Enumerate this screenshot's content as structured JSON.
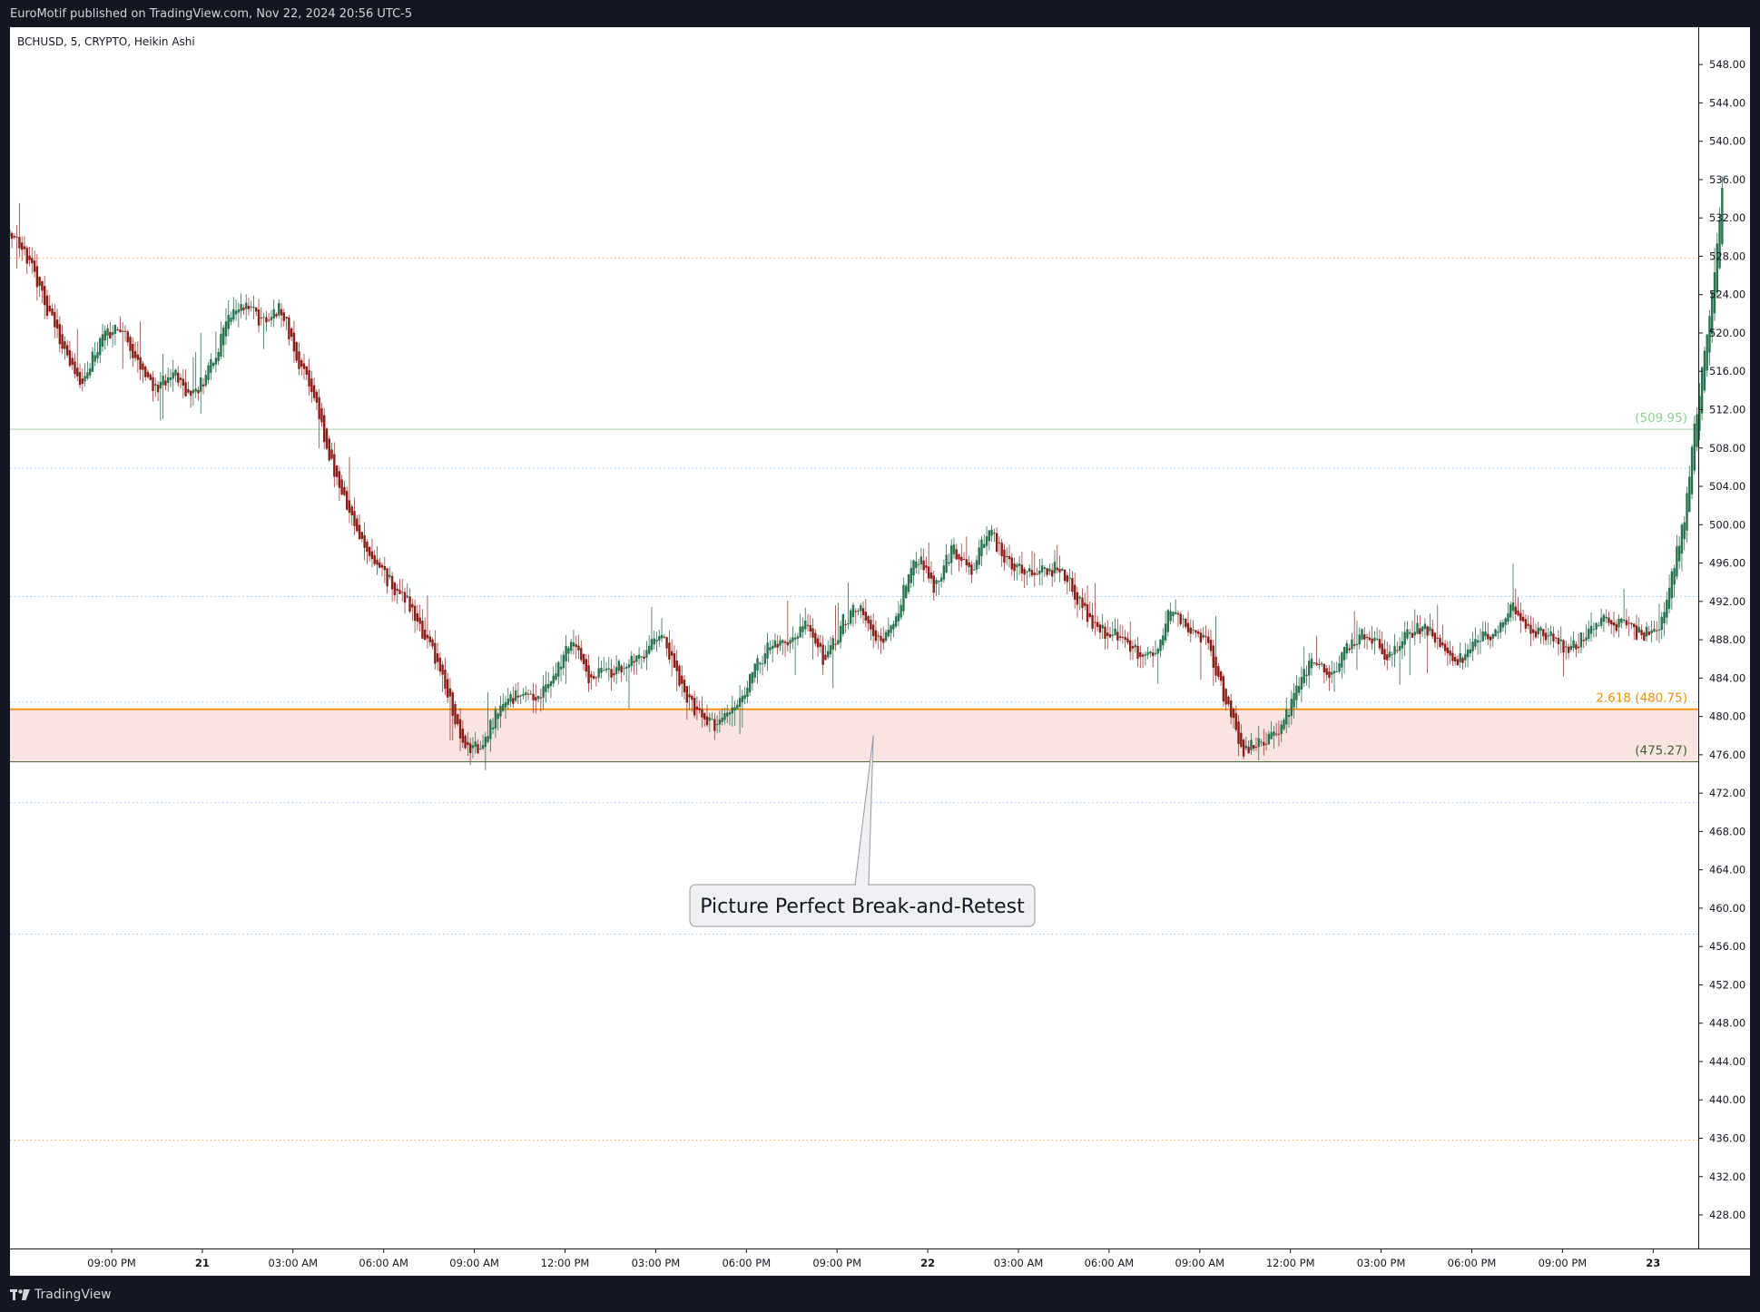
{
  "header": {
    "published": "EuroMotif published on TradingView.com, Nov 22, 2024 20:56 UTC-5"
  },
  "footer": {
    "brand": "TradingView"
  },
  "colors": {
    "up": "#26734d",
    "down": "#8b1d17",
    "wick_up": "#2f6e4e",
    "wick_down": "#a23a35",
    "orange": "#f29008",
    "green_line": "#a5d6a7",
    "dark_green": "#3f5f2a",
    "zone": "#f9e3e3",
    "dotted_blue": "#90caf9",
    "dotted_orange": "#f5b041"
  },
  "chart_data": {
    "type": "candlestick",
    "symbol_label": "BCHUSD, 5, CRYPTO, Heikin Ashi",
    "style": "Heikin Ashi",
    "y_range": [
      424.5,
      550.0
    ],
    "y_ticks": [
      "548.00",
      "544.00",
      "540.00",
      "536.00",
      "532.00",
      "528.00",
      "524.00",
      "520.00",
      "516.00",
      "512.00",
      "508.00",
      "504.00",
      "500.00",
      "496.00",
      "492.00",
      "488.00",
      "484.00",
      "480.00",
      "476.00",
      "472.00",
      "468.00",
      "464.00",
      "460.00",
      "456.00",
      "452.00",
      "448.00",
      "444.00",
      "440.00",
      "436.00",
      "432.00",
      "428.00"
    ],
    "x_ticks": [
      {
        "t": -25,
        "label": "06:00 PM",
        "bold": false
      },
      {
        "t": 0,
        "label": "09:00 PM",
        "bold": false
      },
      {
        "t": 3,
        "label": "21",
        "bold": true
      },
      {
        "t": 6,
        "label": "03:00 AM",
        "bold": false
      },
      {
        "t": 9,
        "label": "06:00 AM",
        "bold": false
      },
      {
        "t": 12,
        "label": "09:00 AM",
        "bold": false
      },
      {
        "t": 15,
        "label": "12:00 PM",
        "bold": false
      },
      {
        "t": 18,
        "label": "03:00 PM",
        "bold": false
      },
      {
        "t": 21,
        "label": "06:00 PM",
        "bold": false
      },
      {
        "t": 24,
        "label": "09:00 PM",
        "bold": false
      },
      {
        "t": 27,
        "label": "22",
        "bold": true
      },
      {
        "t": 30,
        "label": "03:00 AM",
        "bold": false
      },
      {
        "t": 33,
        "label": "06:00 AM",
        "bold": false
      },
      {
        "t": 36,
        "label": "09:00 AM",
        "bold": false
      },
      {
        "t": 39,
        "label": "12:00 PM",
        "bold": false
      },
      {
        "t": 42,
        "label": "03:00 PM",
        "bold": false
      },
      {
        "t": 45,
        "label": "06:00 PM",
        "bold": false
      },
      {
        "t": 48,
        "label": "09:00 PM",
        "bold": false
      },
      {
        "t": 51,
        "label": "23",
        "bold": true
      }
    ],
    "horizontal_levels": [
      {
        "price": 527.8,
        "style": "dotted-orange"
      },
      {
        "price": 509.95,
        "style": "solid-green",
        "label": "(509.95)"
      },
      {
        "price": 505.9,
        "style": "dotted-blue"
      },
      {
        "price": 492.5,
        "style": "dotted-blue"
      },
      {
        "price": 481.5,
        "style": "dotted-blue"
      },
      {
        "price": 480.75,
        "style": "solid-orange",
        "label": "2.618 (480.75)"
      },
      {
        "price": 475.27,
        "style": "solid-darkgreen",
        "label": "(475.27)"
      },
      {
        "price": 471.0,
        "style": "dotted-blue"
      },
      {
        "price": 457.3,
        "style": "dotted-blue"
      },
      {
        "price": 435.8,
        "style": "dotted-orange"
      }
    ],
    "zone": {
      "top": 480.75,
      "bottom": 475.27
    },
    "annotation": {
      "text": "Picture Perfect Break-and-Retest",
      "pointer_price": 478.0,
      "pointer_t": 25.2
    },
    "path": [
      [
        -25.3,
        447.5
      ],
      [
        -24.5,
        445.0
      ],
      [
        -23.5,
        443.0
      ],
      [
        -22.8,
        441.0
      ],
      [
        -21.5,
        446.0
      ],
      [
        -20.5,
        449.5
      ],
      [
        -19.8,
        447.0
      ],
      [
        -19.0,
        448.5
      ],
      [
        -18.0,
        446.0
      ],
      [
        -17.0,
        441.5
      ],
      [
        -16.0,
        436.0
      ],
      [
        -15.4,
        431.0
      ],
      [
        -14.8,
        432.0
      ],
      [
        -14.0,
        437.0
      ],
      [
        -13.4,
        447.0
      ],
      [
        -12.8,
        449.0
      ],
      [
        -12.2,
        456.0
      ],
      [
        -11.4,
        468.0
      ],
      [
        -10.8,
        474.0
      ],
      [
        -10.2,
        480.0
      ],
      [
        -9.6,
        491.0
      ],
      [
        -9.0,
        498.0
      ],
      [
        -8.4,
        506.0
      ],
      [
        -7.8,
        512.0
      ],
      [
        -7.2,
        518.0
      ],
      [
        -6.6,
        514.0
      ],
      [
        -6.0,
        522.0
      ],
      [
        -5.6,
        528.0
      ],
      [
        -5.2,
        531.0
      ],
      [
        -4.8,
        526.0
      ],
      [
        -4.4,
        522.0
      ],
      [
        -3.9,
        527.0
      ],
      [
        -3.4,
        531.0
      ],
      [
        -2.8,
        528.0
      ],
      [
        -2.2,
        523.0
      ],
      [
        -1.6,
        518.0
      ],
      [
        -1.0,
        515.0
      ],
      [
        -0.4,
        519.0
      ],
      [
        0.2,
        521.0
      ],
      [
        0.8,
        517.0
      ],
      [
        1.4,
        514.0
      ],
      [
        2.0,
        516.0
      ],
      [
        2.6,
        513.0
      ],
      [
        3.2,
        516.0
      ],
      [
        3.8,
        521.0
      ],
      [
        4.4,
        523.0
      ],
      [
        5.0,
        521.0
      ],
      [
        5.6,
        522.5
      ],
      [
        6.2,
        517.0
      ],
      [
        6.8,
        512.0
      ],
      [
        7.4,
        505.0
      ],
      [
        8.0,
        500.0
      ],
      [
        8.6,
        496.0
      ],
      [
        9.2,
        494.0
      ],
      [
        9.8,
        492.0
      ],
      [
        10.4,
        488.0
      ],
      [
        11.0,
        484.0
      ],
      [
        11.6,
        477.0
      ],
      [
        12.2,
        476.5
      ],
      [
        12.8,
        481.0
      ],
      [
        13.4,
        482.0
      ],
      [
        14.0,
        481.5
      ],
      [
        14.6,
        484.0
      ],
      [
        15.2,
        488.0
      ],
      [
        15.8,
        484.0
      ],
      [
        16.4,
        484.5
      ],
      [
        17.0,
        485.5
      ],
      [
        17.6,
        486.0
      ],
      [
        18.2,
        489.0
      ],
      [
        18.8,
        483.0
      ],
      [
        19.4,
        480.0
      ],
      [
        20.0,
        479.0
      ],
      [
        20.6,
        481.0
      ],
      [
        21.2,
        484.5
      ],
      [
        21.8,
        487.5
      ],
      [
        22.4,
        488.0
      ],
      [
        23.0,
        490.0
      ],
      [
        23.6,
        485.5
      ],
      [
        24.2,
        490.0
      ],
      [
        24.8,
        491.5
      ],
      [
        25.4,
        487.5
      ],
      [
        26.0,
        491.0
      ],
      [
        26.6,
        497.0
      ],
      [
        27.2,
        493.5
      ],
      [
        27.8,
        497.5
      ],
      [
        28.4,
        495.0
      ],
      [
        29.0,
        499.5
      ],
      [
        29.6,
        496.0
      ],
      [
        30.2,
        495.5
      ],
      [
        30.8,
        495.0
      ],
      [
        31.4,
        495.5
      ],
      [
        32.0,
        492.0
      ],
      [
        32.6,
        489.0
      ],
      [
        33.2,
        488.5
      ],
      [
        33.8,
        487.0
      ],
      [
        34.4,
        486.0
      ],
      [
        35.0,
        491.0
      ],
      [
        35.6,
        489.0
      ],
      [
        36.2,
        488.0
      ],
      [
        36.8,
        482.0
      ],
      [
        37.4,
        476.5
      ],
      [
        38.0,
        477.0
      ],
      [
        38.6,
        478.0
      ],
      [
        39.2,
        483.0
      ],
      [
        39.8,
        486.0
      ],
      [
        40.4,
        484.0
      ],
      [
        41.0,
        488.0
      ],
      [
        41.6,
        488.5
      ],
      [
        42.2,
        486.0
      ],
      [
        42.8,
        488.5
      ],
      [
        43.4,
        489.5
      ],
      [
        44.0,
        487.0
      ],
      [
        44.6,
        486.0
      ],
      [
        45.2,
        488.0
      ],
      [
        45.8,
        489.0
      ],
      [
        46.4,
        491.5
      ],
      [
        47.0,
        489.0
      ],
      [
        47.6,
        488.5
      ],
      [
        48.2,
        487.0
      ],
      [
        48.8,
        488.5
      ],
      [
        49.4,
        490.0
      ],
      [
        50.0,
        489.5
      ],
      [
        50.6,
        488.5
      ],
      [
        51.2,
        489.0
      ],
      [
        51.6,
        495.0
      ],
      [
        52.0,
        500.0
      ],
      [
        52.3,
        508.0
      ],
      [
        52.6,
        516.0
      ],
      [
        52.8,
        520.5
      ],
      [
        53.0,
        525.0
      ],
      [
        53.2,
        532.0
      ],
      [
        53.35,
        538.5
      ]
    ]
  }
}
